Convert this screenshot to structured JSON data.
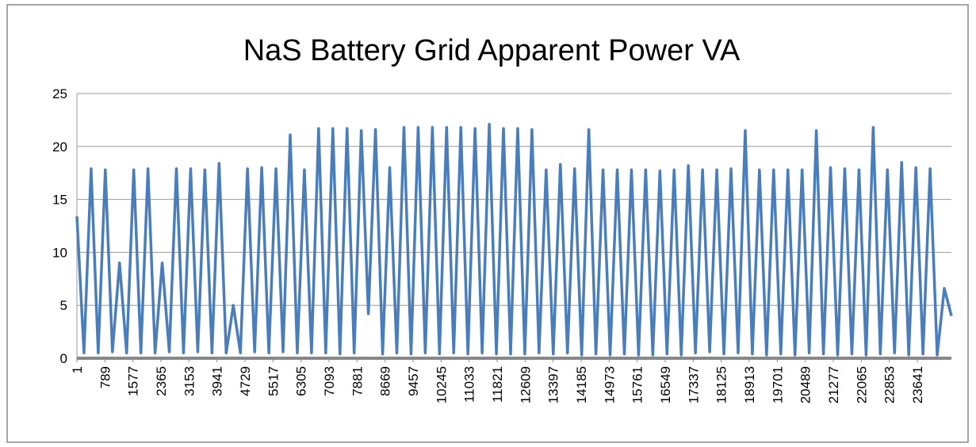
{
  "chart_data": {
    "type": "line",
    "title": "NaS Battery Grid Apparent Power VA",
    "x": [
      1,
      200,
      400,
      600,
      800,
      1000,
      1200,
      1400,
      1600,
      1800,
      2000,
      2200,
      2400,
      2600,
      2800,
      3000,
      3200,
      3400,
      3600,
      3800,
      4000,
      4200,
      4400,
      4600,
      4800,
      5000,
      5200,
      5400,
      5600,
      5800,
      6000,
      6200,
      6400,
      6600,
      6800,
      7000,
      7200,
      7400,
      7600,
      7800,
      8000,
      8200,
      8400,
      8600,
      8800,
      9000,
      9200,
      9400,
      9600,
      9800,
      10000,
      10200,
      10400,
      10600,
      10800,
      11000,
      11200,
      11400,
      11600,
      11800,
      12000,
      12200,
      12400,
      12600,
      12800,
      13000,
      13200,
      13400,
      13600,
      13800,
      14000,
      14200,
      14400,
      14600,
      14800,
      15000,
      15200,
      15400,
      15600,
      15800,
      16000,
      16200,
      16400,
      16600,
      16800,
      17000,
      17200,
      17400,
      17600,
      17800,
      18000,
      18200,
      18400,
      18600,
      18800,
      19000,
      19200,
      19400,
      19600,
      19800,
      20000,
      20200,
      20400,
      20600,
      20800,
      21000,
      21200,
      21400,
      21600,
      21800,
      22000,
      22200,
      22400,
      22600,
      22800,
      23000,
      23200,
      23400,
      23600,
      23800,
      24000,
      24200,
      24400,
      24600
    ],
    "series": [
      {
        "name": "Apparent Power VA",
        "color": "#4a7ebb",
        "values": [
          13.4,
          0.5,
          17.9,
          0.5,
          17.8,
          0.6,
          9,
          0.5,
          17.8,
          0.5,
          17.9,
          0.5,
          9,
          0.6,
          17.9,
          0.5,
          17.9,
          0.6,
          17.8,
          0.5,
          18.4,
          0.5,
          5,
          0.5,
          17.9,
          0.6,
          18,
          0.5,
          17.9,
          0.6,
          21.1,
          0.5,
          17.8,
          0.5,
          21.7,
          0.5,
          21.7,
          0.4,
          21.7,
          0.5,
          21.5,
          4.2,
          21.6,
          0.4,
          18,
          0.5,
          21.8,
          0.4,
          21.8,
          0.5,
          21.8,
          0.4,
          21.8,
          0.5,
          21.8,
          0.4,
          21.7,
          0.5,
          22.1,
          0.4,
          21.7,
          0.4,
          21.7,
          0.4,
          21.6,
          0.5,
          17.8,
          0.4,
          18.3,
          0.5,
          17.9,
          0.3,
          21.6,
          0.4,
          17.8,
          0.3,
          17.8,
          0.4,
          17.8,
          0.3,
          17.8,
          0.3,
          17.7,
          0.4,
          17.8,
          0.3,
          18.2,
          0.5,
          17.8,
          0.6,
          17.8,
          0.4,
          17.9,
          0.5,
          21.5,
          0.4,
          17.8,
          0.3,
          17.8,
          0.4,
          17.8,
          0.3,
          17.8,
          0.5,
          21.5,
          0.4,
          18,
          0.3,
          17.9,
          0.4,
          17.8,
          0.3,
          21.8,
          0.4,
          17.8,
          0.5,
          18.5,
          0.3,
          18,
          0.4,
          17.9,
          0.3,
          6.6,
          4
        ]
      }
    ],
    "xlim": [
      1,
      24600
    ],
    "xticks": [
      1,
      789,
      1577,
      2365,
      3153,
      3941,
      4729,
      5517,
      6305,
      7093,
      7881,
      8669,
      9457,
      10245,
      11033,
      11821,
      12609,
      13397,
      14185,
      14973,
      15761,
      16549,
      17337,
      18125,
      18913,
      19701,
      20489,
      21277,
      22065,
      22853,
      23641
    ],
    "ylim": [
      0,
      25
    ],
    "yticks": [
      0,
      5,
      10,
      15,
      20,
      25
    ],
    "grid": true
  }
}
